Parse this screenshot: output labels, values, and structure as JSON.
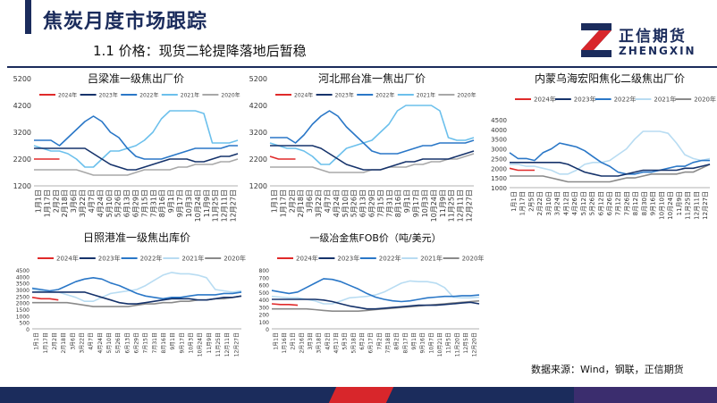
{
  "header": {
    "title": "焦炭月度市场跟踪",
    "subtitle": "1.1 价格：现货二轮提降落地后暂稳"
  },
  "logo": {
    "name_cn": "正信期货",
    "name_en": "ZHENGXIN"
  },
  "source_note": "数据来源：Wind，钢联，正信期货",
  "colors": {
    "navy": "#1b2c5c",
    "red": "#d8262b"
  },
  "chart_data": [
    {
      "type": "line",
      "title": "吕梁准一级焦出厂价",
      "yticks": [
        "5200",
        "4200",
        "3200",
        "2200",
        "1200"
      ],
      "ylim": [
        1200,
        5200
      ],
      "xticks": [
        "1月1日",
        "1月17日",
        "2月2日",
        "2月18日",
        "3月6日",
        "3月22日",
        "4月7日",
        "4月24日",
        "5月10日",
        "5月26日",
        "6月13日",
        "6月29日",
        "7月15日",
        "7月31日",
        "8月16日",
        "9月1日",
        "9月17日",
        "10月3日",
        "10月24日",
        "11月9日",
        "11月25日",
        "12月11日",
        "12月27日"
      ],
      "series": [
        {
          "name": "2024年",
          "color": "#e02a2a",
          "values": [
            2200,
            2200,
            2200,
            2200
          ]
        },
        {
          "name": "2023年",
          "color": "#16336b",
          "values": [
            2600,
            2600,
            2600,
            2600,
            2600,
            2600,
            2600,
            2400,
            2200,
            2000,
            1900,
            1800,
            1800,
            1900,
            2000,
            2100,
            2200,
            2200,
            2200,
            2100,
            2100,
            2200,
            2300,
            2300,
            2400
          ]
        },
        {
          "name": "2022年",
          "color": "#2a77c7",
          "values": [
            2900,
            2900,
            2900,
            2700,
            3000,
            3300,
            3600,
            3800,
            3600,
            3200,
            3000,
            2600,
            2300,
            2200,
            2200,
            2200,
            2300,
            2400,
            2500,
            2600,
            2600,
            2600,
            2600,
            2700,
            2700
          ]
        },
        {
          "name": "2021年",
          "color": "#6cc0ec",
          "values": [
            2700,
            2600,
            2500,
            2500,
            2400,
            2200,
            1900,
            1900,
            2200,
            2500,
            2500,
            2600,
            2700,
            2900,
            3200,
            3700,
            4000,
            4000,
            4000,
            4000,
            3900,
            2800,
            2800,
            2800,
            2900
          ]
        },
        {
          "name": "2020年",
          "color": "#a8a8a8",
          "values": [
            1800,
            1800,
            1800,
            1800,
            1800,
            1800,
            1700,
            1600,
            1600,
            1600,
            1600,
            1600,
            1700,
            1800,
            1800,
            1800,
            1800,
            1900,
            1900,
            2000,
            2000,
            2000,
            2100,
            2100,
            2200
          ]
        }
      ]
    },
    {
      "type": "line",
      "title": "河北邢台准一焦出厂价",
      "yticks": [
        "5200",
        "4200",
        "3200",
        "2200",
        "1200"
      ],
      "ylim": [
        1200,
        5200
      ],
      "xticks": [
        "1月1日",
        "1月17日",
        "2月2日",
        "2月18日",
        "3月6日",
        "3月22日",
        "4月7日",
        "4月24日",
        "5月10日",
        "5月26日",
        "6月13日",
        "6月29日",
        "7月15日",
        "7月31日",
        "8月16日",
        "9月1日",
        "9月17日",
        "10月3日",
        "10月24日",
        "11月9日",
        "11月25日",
        "12月11日",
        "12月27日"
      ],
      "series": [
        {
          "name": "2024年",
          "color": "#e02a2a",
          "values": [
            2300,
            2200,
            2200,
            2200
          ]
        },
        {
          "name": "2023年",
          "color": "#16336b",
          "values": [
            2700,
            2700,
            2700,
            2700,
            2700,
            2700,
            2600,
            2400,
            2200,
            2000,
            1900,
            1800,
            1800,
            1800,
            1900,
            2000,
            2100,
            2100,
            2200,
            2200,
            2200,
            2200,
            2300,
            2400,
            2500
          ]
        },
        {
          "name": "2022年",
          "color": "#2a77c7",
          "values": [
            3000,
            3000,
            3000,
            2800,
            3100,
            3500,
            3800,
            4000,
            3800,
            3400,
            3100,
            2800,
            2500,
            2400,
            2400,
            2400,
            2500,
            2600,
            2700,
            2700,
            2800,
            2800,
            2800,
            2800,
            2900
          ]
        },
        {
          "name": "2021年",
          "color": "#6cc0ec",
          "values": [
            2800,
            2700,
            2600,
            2600,
            2500,
            2300,
            2000,
            2000,
            2300,
            2600,
            2700,
            2800,
            2900,
            3200,
            3500,
            4000,
            4200,
            4200,
            4200,
            4200,
            4000,
            3000,
            2900,
            2900,
            3000
          ]
        },
        {
          "name": "2020年",
          "color": "#a8a8a8",
          "values": [
            1900,
            1900,
            1900,
            1900,
            1900,
            1900,
            1800,
            1700,
            1700,
            1700,
            1700,
            1700,
            1800,
            1800,
            1900,
            1900,
            1900,
            2000,
            2000,
            2100,
            2100,
            2200,
            2200,
            2300,
            2400
          ]
        }
      ]
    },
    {
      "type": "line",
      "title": "内蒙乌海宏阳焦化二级焦出厂价",
      "yticks": [
        "4500",
        "4000",
        "3500",
        "3000",
        "2500",
        "2000",
        "1500",
        "1000"
      ],
      "ylim": [
        1000,
        4500
      ],
      "xticks": [
        "1月1日",
        "1月17日",
        "2月5日",
        "2月22日",
        "3月10日",
        "3月24日",
        "4月12日",
        "4月26日",
        "5月12日",
        "5月26日",
        "6月12日",
        "6月26日",
        "7月12日",
        "7月26日",
        "8月12日",
        "8月30日",
        "9月16日",
        "10月10日",
        "10月24日",
        "11月9日",
        "11月25日",
        "12月11日",
        "12月27日"
      ],
      "series": [
        {
          "name": "2024年",
          "color": "#e02a2a",
          "values": [
            2000,
            1900,
            1900,
            1900
          ]
        },
        {
          "name": "2023年",
          "color": "#16336b",
          "values": [
            2300,
            2300,
            2300,
            2300,
            2300,
            2300,
            2300,
            2200,
            2000,
            1800,
            1700,
            1600,
            1600,
            1600,
            1700,
            1800,
            1900,
            1900,
            1900,
            1900,
            1900,
            2000,
            2000,
            2100,
            2200
          ]
        },
        {
          "name": "2022年",
          "color": "#2a77c7",
          "values": [
            2800,
            2500,
            2500,
            2400,
            2800,
            3000,
            3300,
            3200,
            3100,
            2900,
            2600,
            2300,
            2100,
            1800,
            1700,
            1700,
            1800,
            1800,
            1900,
            2000,
            2100,
            2100,
            2300,
            2400,
            2400
          ]
        },
        {
          "name": "2021年",
          "color": "#b8dcf2",
          "values": [
            2200,
            2200,
            2100,
            2100,
            2000,
            1900,
            1700,
            1700,
            1900,
            2200,
            2300,
            2300,
            2400,
            2700,
            3000,
            3500,
            3900,
            3900,
            3900,
            3800,
            3300,
            2700,
            2500,
            2400,
            2500
          ]
        },
        {
          "name": "2020年",
          "color": "#8a8a8a",
          "values": [
            1600,
            1600,
            1600,
            1600,
            1600,
            1500,
            1400,
            1300,
            1300,
            1300,
            1300,
            1300,
            1300,
            1400,
            1500,
            1500,
            1600,
            1700,
            1700,
            1700,
            1700,
            1800,
            1800,
            2000,
            2200
          ]
        }
      ]
    },
    {
      "type": "line",
      "title": "日照港准一级焦出库价",
      "yticks": [
        "4500",
        "4000",
        "3500",
        "3000",
        "2500",
        "2000",
        "1500",
        "1000",
        "500",
        "0"
      ],
      "ylim": [
        0,
        4500
      ],
      "xticks": [
        "1月1日",
        "1月17日",
        "2月2日",
        "2月18日",
        "3月6日",
        "3月22日",
        "4月7日",
        "4月24日",
        "5月10日",
        "5月26日",
        "6月13日",
        "6月29日",
        "7月15日",
        "7月31日",
        "8月16日",
        "9月1日",
        "9月17日",
        "10月3日",
        "10月24日",
        "11月9日",
        "11月25日",
        "12月11日",
        "12月27日"
      ],
      "series": [
        {
          "name": "2024年",
          "color": "#e02a2a",
          "values": [
            2400,
            2300,
            2300,
            2200
          ]
        },
        {
          "name": "2023年",
          "color": "#16336b",
          "values": [
            2800,
            2800,
            2800,
            2800,
            2800,
            2800,
            2800,
            2600,
            2400,
            2200,
            2000,
            1900,
            1900,
            2000,
            2100,
            2200,
            2300,
            2300,
            2300,
            2200,
            2200,
            2300,
            2400,
            2400,
            2500
          ]
        },
        {
          "name": "2022年",
          "color": "#2a77c7",
          "values": [
            3100,
            3000,
            2900,
            3000,
            3300,
            3600,
            3800,
            3900,
            3800,
            3500,
            3300,
            3000,
            2700,
            2500,
            2400,
            2300,
            2400,
            2400,
            2500,
            2600,
            2600,
            2600,
            2700,
            2700,
            2800
          ]
        },
        {
          "name": "2021年",
          "color": "#b8dcf2",
          "values": [
            3000,
            2900,
            2800,
            2800,
            2600,
            2400,
            2100,
            2100,
            2400,
            2700,
            2800,
            2900,
            3000,
            3300,
            3700,
            4100,
            4300,
            4200,
            4200,
            4100,
            3900,
            3000,
            2900,
            2800,
            2900
          ]
        },
        {
          "name": "2020年",
          "color": "#8a8a8a",
          "values": [
            2000,
            2000,
            2000,
            2000,
            2000,
            1900,
            1800,
            1700,
            1700,
            1700,
            1700,
            1700,
            1800,
            1900,
            1900,
            2000,
            2000,
            2100,
            2100,
            2200,
            2200,
            2300,
            2300,
            2400,
            2500
          ]
        }
      ]
    },
    {
      "type": "line",
      "title": "一级冶金焦FOB价（吨/美元）",
      "yticks": [
        "800",
        "700",
        "600",
        "500",
        "400",
        "300",
        "200",
        "100",
        "0"
      ],
      "ylim": [
        0,
        800
      ],
      "xticks": [
        "1月1日",
        "1月16日",
        "2月1日",
        "2月16日",
        "3月3日",
        "3月18日",
        "4月2日",
        "4月17日",
        "5月3日",
        "5月18日",
        "6月2日",
        "6月17日",
        "7月2日",
        "7月18日",
        "8月2日",
        "8月17日",
        "9月1日",
        "9月16日",
        "10月7日",
        "10月21日",
        "11月5日",
        "11月20日",
        "12月5日",
        "12月20日"
      ],
      "series": [
        {
          "name": "2024年",
          "color": "#e02a2a",
          "values": [
            340,
            330,
            330,
            320
          ]
        },
        {
          "name": "2023年",
          "color": "#16336b",
          "values": [
            400,
            400,
            400,
            400,
            400,
            400,
            390,
            370,
            340,
            310,
            290,
            270,
            270,
            280,
            290,
            300,
            310,
            320,
            320,
            320,
            330,
            340,
            350,
            360,
            340
          ]
        },
        {
          "name": "2022年",
          "color": "#2a77c7",
          "values": [
            520,
            500,
            480,
            500,
            560,
            620,
            680,
            670,
            640,
            590,
            540,
            480,
            430,
            400,
            380,
            370,
            380,
            400,
            420,
            430,
            440,
            440,
            450,
            450,
            460
          ]
        },
        {
          "name": "2021年",
          "color": "#b8dcf2",
          "values": [
            440,
            430,
            420,
            420,
            400,
            380,
            340,
            340,
            380,
            420,
            430,
            440,
            460,
            500,
            560,
            620,
            650,
            640,
            640,
            620,
            560,
            430,
            420,
            420,
            430
          ]
        },
        {
          "name": "2020年",
          "color": "#8a8a8a",
          "values": [
            270,
            270,
            270,
            270,
            270,
            260,
            250,
            240,
            240,
            240,
            240,
            250,
            260,
            270,
            280,
            290,
            300,
            310,
            320,
            330,
            340,
            350,
            360,
            370,
            380
          ]
        }
      ]
    }
  ]
}
